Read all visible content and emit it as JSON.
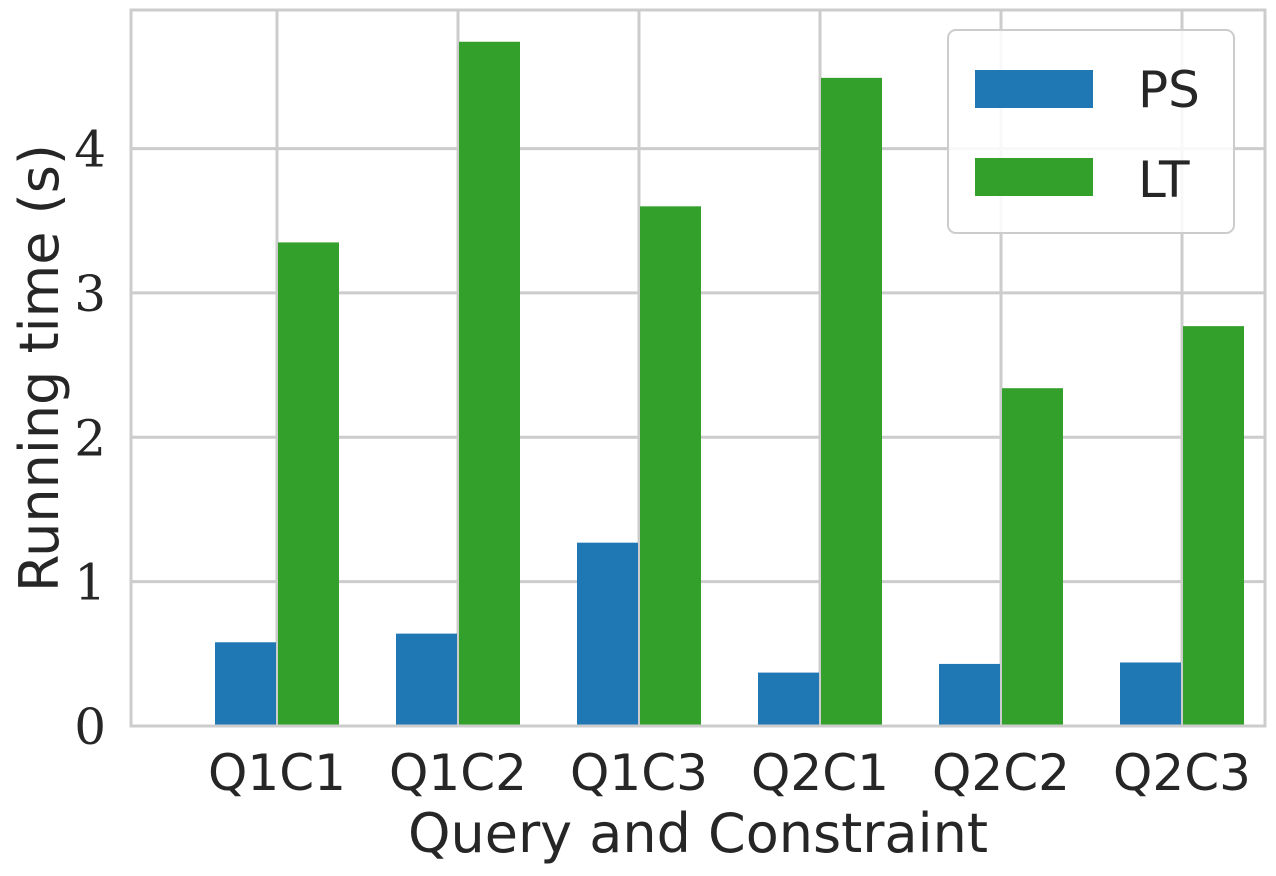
{
  "chart_data": {
    "type": "bar",
    "xlabel": "Query and Constraint",
    "ylabel": "Running time (s)",
    "categories": [
      "Q1C1",
      "Q1C2",
      "Q1C3",
      "Q2C1",
      "Q2C2",
      "Q2C3"
    ],
    "series": [
      {
        "name": "PS",
        "color": "#1f77b4",
        "values": [
          0.58,
          0.64,
          1.27,
          0.37,
          0.43,
          0.44
        ]
      },
      {
        "name": "LT",
        "color": "#33a02c",
        "values": [
          3.35,
          4.74,
          3.6,
          4.49,
          2.34,
          2.77
        ]
      }
    ],
    "ylim": [
      0,
      4.96
    ],
    "yticks": [
      "0",
      "1",
      "2",
      "3",
      "4"
    ],
    "grid": true,
    "legend": "top-right"
  }
}
